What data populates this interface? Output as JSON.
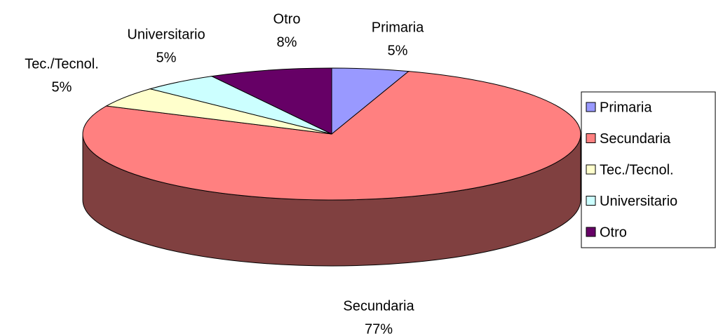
{
  "chart_data": {
    "type": "pie",
    "categories": [
      "Primaria",
      "Secundaria",
      "Tec./Tecnol.",
      "Universitario",
      "Otro"
    ],
    "values": [
      5,
      77,
      5,
      5,
      8
    ],
    "value_labels": [
      "5%",
      "77%",
      "5%",
      "5%",
      "8%"
    ],
    "colors": [
      "#9999ff",
      "#ff8080",
      "#ffffcc",
      "#ccffff",
      "#660066"
    ],
    "legend": "right"
  }
}
